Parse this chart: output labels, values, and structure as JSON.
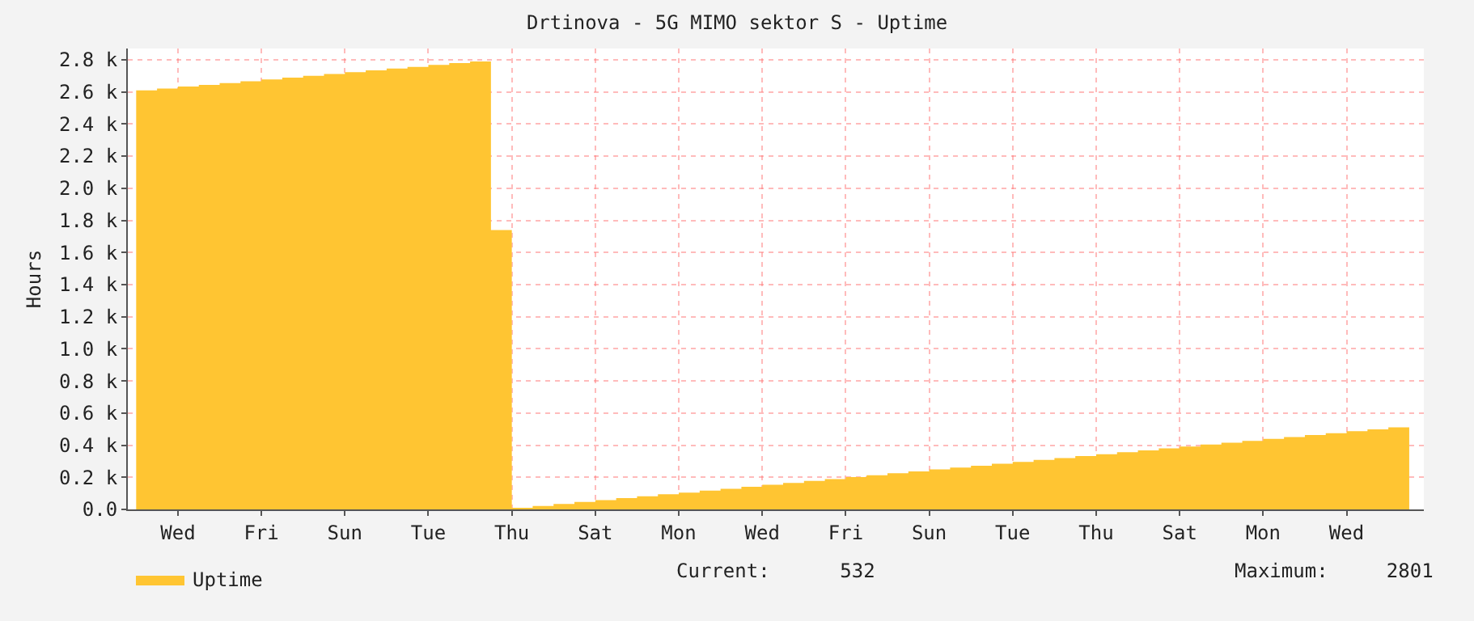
{
  "chart_data": {
    "type": "area",
    "title": "Drtinova - 5G MIMO sektor S - Uptime",
    "ylabel": "Hours",
    "categories": [
      null,
      null,
      "Wed",
      null,
      null,
      null,
      "Fri",
      null,
      null,
      null,
      "Sun",
      null,
      null,
      null,
      "Tue",
      null,
      null,
      null,
      "Thu",
      null,
      null,
      null,
      "Sat",
      null,
      null,
      null,
      "Mon",
      null,
      null,
      null,
      "Wed",
      null,
      null,
      null,
      "Fri",
      null,
      null,
      null,
      "Sun",
      null,
      null,
      null,
      "Tue",
      null,
      null,
      null,
      "Thu",
      null,
      null,
      null,
      "Sat",
      null,
      null,
      null,
      "Mon",
      null,
      null,
      null,
      "Wed",
      null,
      null,
      null
    ],
    "series": [
      {
        "name": "Uptime",
        "color": "#ffc532",
        "values": [
          2610,
          2621,
          2633,
          2644,
          2655,
          2666,
          2678,
          2689,
          2700,
          2711,
          2723,
          2734,
          2745,
          2756,
          2768,
          2779,
          2790,
          1740,
          10,
          22,
          34,
          46,
          58,
          70,
          82,
          94,
          105,
          117,
          129,
          141,
          153,
          165,
          177,
          189,
          201,
          213,
          225,
          237,
          249,
          260,
          272,
          284,
          296,
          308,
          320,
          332,
          344,
          356,
          368,
          380,
          392,
          404,
          415,
          427,
          439,
          451,
          463,
          475,
          487,
          499,
          511,
          523
        ]
      }
    ],
    "ylim": [
      0,
      2870
    ],
    "yticks": [
      {
        "value": 0,
        "label": "0.0"
      },
      {
        "value": 200,
        "label": "0.2 k"
      },
      {
        "value": 400,
        "label": "0.4 k"
      },
      {
        "value": 600,
        "label": "0.6 k"
      },
      {
        "value": 800,
        "label": "0.8 k"
      },
      {
        "value": 1000,
        "label": "1.0 k"
      },
      {
        "value": 1200,
        "label": "1.2 k"
      },
      {
        "value": 1400,
        "label": "1.4 k"
      },
      {
        "value": 1600,
        "label": "1.6 k"
      },
      {
        "value": 1800,
        "label": "1.8 k"
      },
      {
        "value": 2000,
        "label": "2.0 k"
      },
      {
        "value": 2200,
        "label": "2.2 k"
      },
      {
        "value": 2400,
        "label": "2.4 k"
      },
      {
        "value": 2600,
        "label": "2.6 k"
      },
      {
        "value": 2800,
        "label": "2.8 k"
      }
    ],
    "grid": true,
    "legend": "bottom left",
    "annotations": [
      "Current:      532",
      "Maximum:     2801"
    ]
  }
}
